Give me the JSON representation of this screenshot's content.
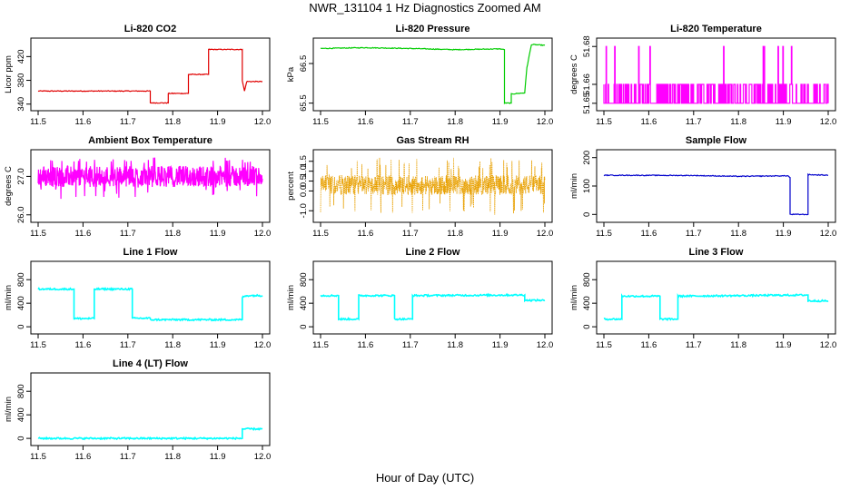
{
  "figure": {
    "title": "NWR_131104  1 Hz Diagnostics Zoomed AM",
    "xlabel": "Hour of Day (UTC)"
  },
  "chart_data": [
    {
      "type": "line",
      "title": "Li-820 CO2",
      "ylabel": "Licor ppm",
      "color": "#e00000",
      "xlim": [
        11.5,
        12.0
      ],
      "ylim": [
        335,
        445
      ],
      "xticks": [
        "11.5",
        "11.6",
        "11.7",
        "11.8",
        "11.9",
        "12.0"
      ],
      "yticks": [
        "340",
        "380",
        "420"
      ],
      "series": [
        {
          "x": [
            11.5,
            11.75,
            11.75,
            11.79,
            11.79,
            11.835,
            11.835,
            11.88,
            11.88,
            11.955,
            11.955,
            11.96,
            11.965,
            12.0
          ],
          "values": [
            362,
            362,
            342,
            342,
            358,
            358,
            390,
            390,
            432,
            432,
            380,
            362,
            378,
            378
          ]
        }
      ]
    },
    {
      "type": "line",
      "title": "Li-820 Pressure",
      "ylabel": "kPa",
      "color": "#00cc00",
      "xlim": [
        11.5,
        12.0
      ],
      "ylim": [
        65.4,
        67.05
      ],
      "xticks": [
        "11.5",
        "11.6",
        "11.7",
        "11.8",
        "11.9",
        "12.0"
      ],
      "yticks": [
        "65.5",
        "66.5"
      ],
      "series": [
        {
          "x": [
            11.5,
            11.6,
            11.7,
            11.8,
            11.9,
            11.91,
            11.91,
            11.925,
            11.925,
            11.955,
            11.96,
            11.97,
            12.0
          ],
          "values": [
            66.88,
            66.9,
            66.88,
            66.85,
            66.87,
            66.85,
            65.5,
            65.5,
            65.73,
            65.76,
            66.4,
            66.98,
            66.96
          ]
        }
      ]
    },
    {
      "type": "line",
      "title": "Li-820 Temperature",
      "ylabel": "degrees C",
      "color": "#ff00ff",
      "xlim": [
        11.5,
        12.0
      ],
      "ylim": [
        51.648,
        51.6825
      ],
      "xticks": [
        "11.5",
        "11.6",
        "11.7",
        "11.8",
        "11.9",
        "12.0"
      ],
      "yticks": [
        "51.65",
        "51.66",
        "51.68"
      ],
      "series": [
        {
          "values": [
            51.66,
            51.65,
            51.68
          ]
        }
      ]
    },
    {
      "type": "line",
      "title": "Ambient Box Temperature",
      "ylabel": "degrees C",
      "color": "#ff00ff",
      "xlim": [
        11.5,
        12.0
      ],
      "ylim": [
        25.9,
        27.6
      ],
      "xticks": [
        "11.5",
        "11.6",
        "11.7",
        "11.8",
        "11.9",
        "12.0"
      ],
      "yticks": [
        "26.0",
        "27.0"
      ],
      "series": [
        {
          "values": [
            27.0,
            26.4,
            27.5
          ]
        }
      ]
    },
    {
      "type": "line",
      "title": "Gas Stream RH",
      "ylabel": "percent",
      "color": "#e8a000",
      "xlim": [
        11.5,
        12.0
      ],
      "ylim": [
        -1.4,
        1.9
      ],
      "xticks": [
        "11.5",
        "11.6",
        "11.7",
        "11.8",
        "11.9",
        "12.0"
      ],
      "yticks": [
        "-1.0",
        "0.0",
        "0.5",
        "1.0",
        "1.5"
      ],
      "series": [
        {
          "values": [
            0.3,
            -1.2,
            1.7
          ]
        }
      ]
    },
    {
      "type": "line",
      "title": "Sample Flow",
      "ylabel": "ml/min",
      "color": "#0000cc",
      "xlim": [
        11.5,
        12.0
      ],
      "ylim": [
        -15,
        215
      ],
      "xticks": [
        "11.5",
        "11.6",
        "11.7",
        "11.8",
        "11.9",
        "12.0"
      ],
      "yticks": [
        "0",
        "100",
        "200"
      ],
      "series": [
        {
          "x": [
            11.5,
            11.7,
            11.8,
            11.91,
            11.915,
            11.915,
            11.955,
            11.955,
            12.0
          ],
          "values": [
            138,
            137,
            134,
            136,
            130,
            0,
            0,
            140,
            138
          ]
        }
      ]
    },
    {
      "type": "line",
      "title": "Line 1 Flow",
      "ylabel": "ml/min",
      "color": "#00ffff",
      "xlim": [
        11.5,
        12.0
      ],
      "ylim": [
        -60,
        1050
      ],
      "xticks": [
        "11.5",
        "11.6",
        "11.7",
        "11.8",
        "11.9",
        "12.0"
      ],
      "yticks": [
        "0",
        "400",
        "800"
      ],
      "series": [
        {
          "x": [
            11.5,
            11.58,
            11.58,
            11.625,
            11.625,
            11.71,
            11.71,
            11.75,
            11.75,
            11.955,
            11.955,
            11.965,
            12.0
          ],
          "values": [
            640,
            640,
            140,
            140,
            640,
            640,
            145,
            145,
            120,
            120,
            500,
            530,
            530
          ]
        }
      ]
    },
    {
      "type": "line",
      "title": "Line 2 Flow",
      "ylabel": "ml/min",
      "color": "#00ffff",
      "xlim": [
        11.5,
        12.0
      ],
      "ylim": [
        -60,
        1050
      ],
      "xticks": [
        "11.5",
        "11.6",
        "11.7",
        "11.8",
        "11.9",
        "12.0"
      ],
      "yticks": [
        "0",
        "400",
        "800"
      ],
      "series": [
        {
          "x": [
            11.5,
            11.54,
            11.54,
            11.585,
            11.585,
            11.665,
            11.665,
            11.705,
            11.705,
            11.955,
            11.955,
            12.0
          ],
          "values": [
            530,
            530,
            130,
            130,
            530,
            530,
            130,
            130,
            530,
            540,
            450,
            450
          ]
        }
      ]
    },
    {
      "type": "line",
      "title": "Line 3 Flow",
      "ylabel": "ml/min",
      "color": "#00ffff",
      "xlim": [
        11.5,
        12.0
      ],
      "ylim": [
        -60,
        1050
      ],
      "xticks": [
        "11.5",
        "11.6",
        "11.7",
        "11.8",
        "11.9",
        "12.0"
      ],
      "yticks": [
        "0",
        "400",
        "800"
      ],
      "series": [
        {
          "x": [
            11.5,
            11.54,
            11.54,
            11.625,
            11.625,
            11.665,
            11.665,
            11.955,
            11.955,
            12.0
          ],
          "values": [
            130,
            130,
            520,
            520,
            130,
            130,
            520,
            540,
            440,
            440
          ]
        }
      ]
    },
    {
      "type": "line",
      "title": "Line 4 (LT) Flow",
      "ylabel": "ml/min",
      "color": "#00ffff",
      "xlim": [
        11.5,
        12.0
      ],
      "ylim": [
        -60,
        1050
      ],
      "xticks": [
        "11.5",
        "11.6",
        "11.7",
        "11.8",
        "11.9",
        "12.0"
      ],
      "yticks": [
        "0",
        "400",
        "800"
      ],
      "series": [
        {
          "x": [
            11.5,
            11.955,
            11.955,
            12.0
          ],
          "values": [
            0,
            0,
            160,
            160
          ]
        }
      ]
    }
  ]
}
